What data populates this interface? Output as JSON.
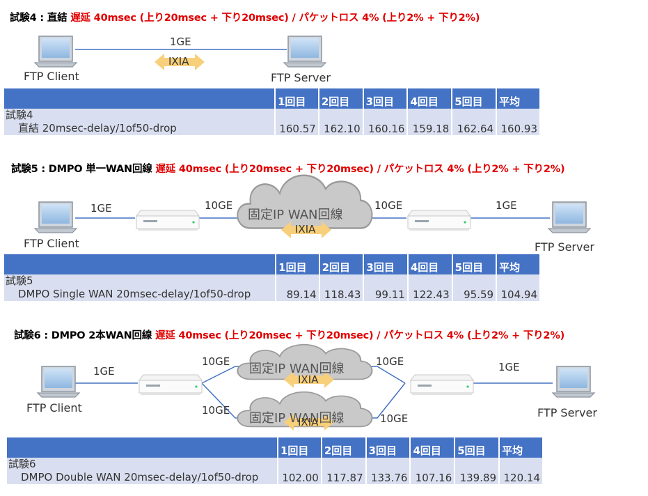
{
  "test4": {
    "title_black": "試験4 : 直結 ",
    "title_red": "遅延 40msec (上り20msec + 下り20msec) / パケットロス 4% (上り2% + 下り2%)",
    "client_label": "FTP Client",
    "server_label": "FTP Server",
    "link_label": "1GE",
    "ixia_label": "IXIA",
    "table": {
      "headers": [
        "1回目",
        "2回目",
        "3回目",
        "4回目",
        "5回目",
        "平均"
      ],
      "row_name_1": "試験4",
      "row_name_2": "直結 20msec-delay/1of50-drop",
      "values": [
        "160.57",
        "162.10",
        "160.16",
        "159.18",
        "162.64",
        "160.93"
      ]
    }
  },
  "test5": {
    "title_black": "試験5 : DMPO 単一WAN回線 ",
    "title_red": "遅延 40msec (上り20msec + 下り20msec) / パケットロス 4% (上り2% + 下り2%)",
    "client_label": "FTP Client",
    "server_label": "FTP Server",
    "link_left": "1GE",
    "link_mid_left": "10GE",
    "link_mid_right": "10GE",
    "link_right": "1GE",
    "cloud_label": "固定IP WAN回線",
    "ixia_label": "IXIA",
    "table": {
      "headers": [
        "1回目",
        "2回目",
        "3回目",
        "4回目",
        "5回目",
        "平均"
      ],
      "row_name_1": "試験5",
      "row_name_2": "DMPO Single WAN 20msec-delay/1of50-drop",
      "values": [
        "89.14",
        "118.43",
        "99.11",
        "122.43",
        "95.59",
        "104.94"
      ]
    }
  },
  "test6": {
    "title_black": "試験6 : DMPO 2本WAN回線 ",
    "title_red": "遅延 40msec (上り20msec + 下り20msec) / パケットロス 4% (上り2% + 下り2%)",
    "client_label": "FTP Client",
    "server_label": "FTP Server",
    "link_left": "1GE",
    "link_top_left": "10GE",
    "link_top_right": "10GE",
    "link_bottom_left": "10GE",
    "link_bottom_right": "10GE",
    "link_right": "1GE",
    "cloud_top_label": "固定IP WAN回線",
    "cloud_bottom_label": "固定IP WAN回線",
    "ixia_top_label": "IXIA",
    "ixia_bottom_label": "IXIA",
    "table": {
      "headers": [
        "1回目",
        "2回目",
        "3回目",
        "4回目",
        "5回目",
        "平均"
      ],
      "row_name_1": "試験6",
      "row_name_2": "DMPO Double WAN 20msec-delay/1of50-drop",
      "values": [
        "102.00",
        "117.87",
        "133.76",
        "107.16",
        "139.89",
        "120.14"
      ]
    }
  },
  "colors": {
    "title_red": "#e00000",
    "table_header": "#4472c4",
    "table_body": "#d9dff0",
    "link_line": "#4472c4",
    "ixia_arrow": "#f8cf7a",
    "cloud_fill": "#c8c8c8"
  }
}
